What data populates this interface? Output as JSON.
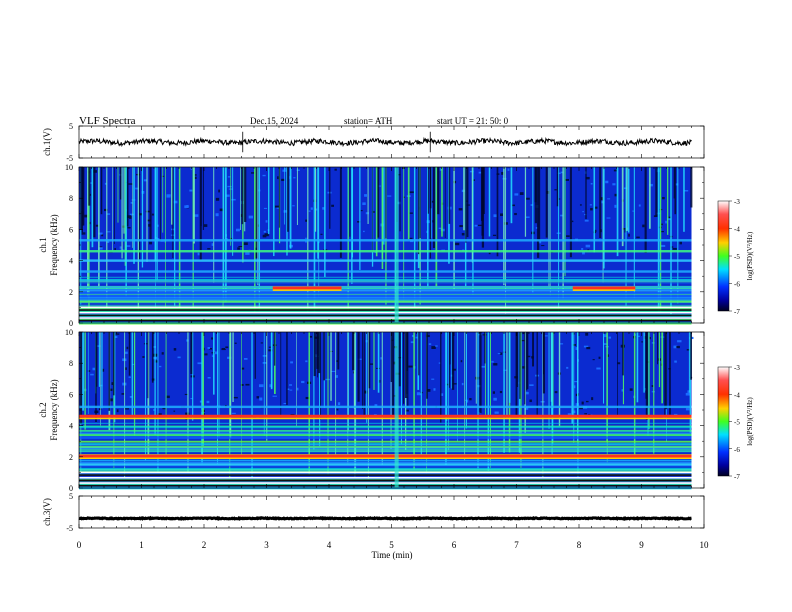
{
  "header": {
    "title": "VLF  Spectra",
    "date": "Dec.15, 2024",
    "station": "station= ATH",
    "start": "start  UT  =   21: 50: 0"
  },
  "colors": {
    "background": "#ffffff",
    "axis": "#000000",
    "trace": "#000000",
    "spectrogram_base": "#0a1fb4",
    "colormap": [
      "#ffffff",
      "#ff3030",
      "#ff8c00",
      "#ffff00",
      "#00ff40",
      "#00c8ff",
      "#0000ff",
      "#000030"
    ]
  },
  "chart_data": [
    {
      "type": "line",
      "name": "ch1-waveform",
      "ylabel": "ch.1(V)",
      "ylim": [
        -5,
        5
      ],
      "yticks": [
        "5",
        "-5"
      ],
      "xlim": [
        0,
        10
      ],
      "approx_level": 0
    },
    {
      "type": "heatmap",
      "name": "ch1-spectrogram",
      "ylabel": "ch.1",
      "ylabel2": "Frequency  (kHz)",
      "xlim": [
        0,
        10
      ],
      "ylim": [
        0,
        10
      ],
      "yticks": [
        "0",
        "2",
        "4",
        "6",
        "8",
        "10"
      ],
      "data_extent_min": 9.8,
      "colorbar": {
        "label": "log(PSD)(V²/Hz)",
        "range": [
          -7,
          -3
        ],
        "ticks": [
          "-3",
          "-4",
          "-5",
          "-6",
          "-7"
        ]
      },
      "bands_khz": [
        0.5,
        1.0,
        1.6,
        2.1,
        2.3,
        3.3,
        4.0,
        4.6,
        5.3
      ],
      "hot_segments": [
        {
          "x0": 3.1,
          "x1": 4.2,
          "y": 2.25
        },
        {
          "x0": 7.9,
          "x1": 8.9,
          "y": 2.25
        }
      ]
    },
    {
      "type": "heatmap",
      "name": "ch2-spectrogram",
      "ylabel": "ch.2",
      "ylabel2": "Frequency  (kHz)",
      "xlim": [
        0,
        10
      ],
      "ylim": [
        0,
        10
      ],
      "yticks": [
        "0",
        "2",
        "4",
        "6",
        "8",
        "10"
      ],
      "data_extent_min": 9.8,
      "colorbar": {
        "label": "log(PSD)(V²/Hz)",
        "range": [
          -7,
          -3
        ],
        "ticks": [
          "-3",
          "-4",
          "-5",
          "-6",
          "-7"
        ]
      },
      "bands_khz": [
        0.5,
        1.0,
        1.5,
        2.0,
        2.1,
        2.6,
        3.4,
        4.6,
        5.2
      ],
      "hot_segments": [
        {
          "x0": 0.0,
          "x1": 9.8,
          "y": 2.05
        },
        {
          "x0": 0.0,
          "x1": 9.8,
          "y": 4.6
        }
      ]
    },
    {
      "type": "line",
      "name": "ch3-waveform",
      "ylabel": "ch.3(V)",
      "ylim": [
        -5,
        5
      ],
      "yticks": [
        "5",
        "-5"
      ],
      "xlim": [
        0,
        10
      ],
      "xlabel": "Time  (min)",
      "xticks": [
        "0",
        "1",
        "2",
        "3",
        "4",
        "5",
        "6",
        "7",
        "8",
        "9",
        "10"
      ],
      "approx_level": -2
    }
  ]
}
